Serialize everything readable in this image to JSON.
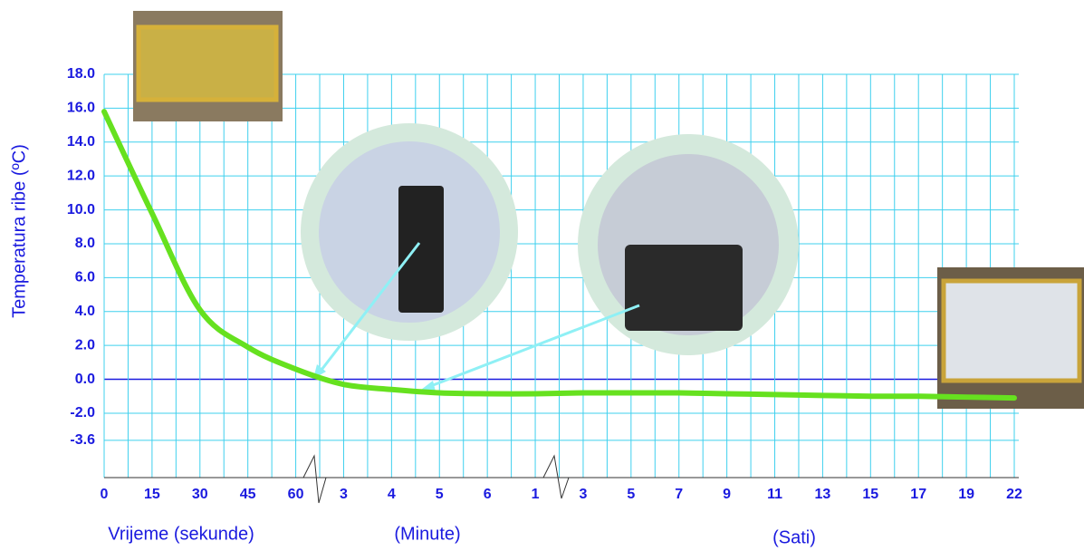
{
  "chart_data": {
    "type": "line",
    "ylabel": "Temperatura ribe (ºC)",
    "x_group_labels": [
      "Vrijeme (sekunde)",
      "(Minute)",
      "(Sati)"
    ],
    "categories": [
      "0",
      "15",
      "30",
      "45",
      "60",
      "3",
      "4",
      "5",
      "6",
      "1",
      "3",
      "5",
      "7",
      "9",
      "11",
      "13",
      "15",
      "17",
      "19",
      "22"
    ],
    "series": [
      {
        "name": "Temperatura ribe",
        "color": "#66e11f",
        "values": [
          15.8,
          9.8,
          4.1,
          1.9,
          0.6,
          -0.3,
          -0.6,
          -0.8,
          -0.85,
          -0.85,
          -0.8,
          -0.8,
          -0.8,
          -0.85,
          -0.9,
          -0.95,
          -1.0,
          -1.0,
          -1.05,
          -1.1
        ]
      }
    ],
    "ylim": [
      -5.8,
      18.0
    ],
    "yticks": [
      {
        "value": 18,
        "label": "18.0"
      },
      {
        "value": 16,
        "label": "16.0"
      },
      {
        "value": 14,
        "label": "14.0"
      },
      {
        "value": 12,
        "label": "12.0"
      },
      {
        "value": 10,
        "label": "10.0"
      },
      {
        "value": 8,
        "label": "8.0"
      },
      {
        "value": 6,
        "label": "6.0"
      },
      {
        "value": 4,
        "label": "4.0"
      },
      {
        "value": 2,
        "label": "2.0"
      },
      {
        "value": 0,
        "label": "0.0"
      },
      {
        "value": -2,
        "label": "-2.0"
      },
      -3.6
    ],
    "grid": true
  }
}
